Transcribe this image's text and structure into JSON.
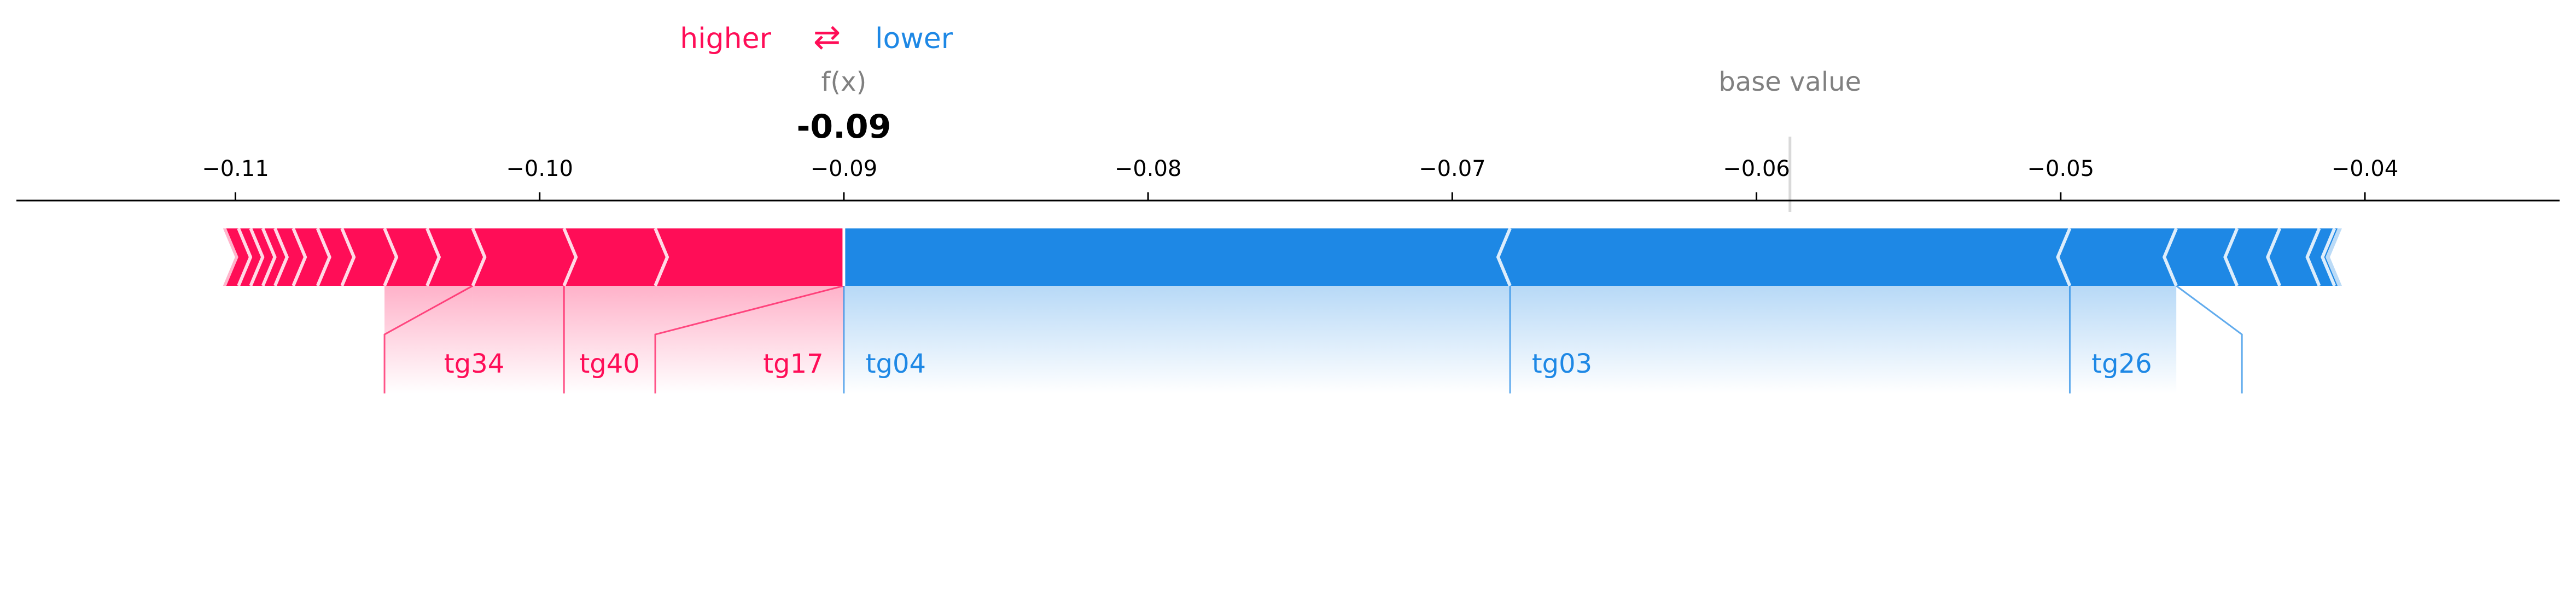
{
  "legend": {
    "higher_label": "higher",
    "lower_label": "lower",
    "arrow_glyph": "⇄"
  },
  "fx_label": "f(x)",
  "base_value_label": "base value",
  "colors": {
    "higher": "#ff0d57",
    "lower": "#1e88e5",
    "gray_text": "#808080",
    "divider": "#ffffff"
  },
  "chart_data": {
    "type": "force",
    "x_ticks": [
      -0.11,
      -0.1,
      -0.09,
      -0.08,
      -0.07,
      -0.06,
      -0.05,
      -0.04
    ],
    "x_tick_labels": [
      "−0.11",
      "−0.10",
      "−0.09",
      "−0.08",
      "−0.07",
      "−0.06",
      "−0.05",
      "−0.04"
    ],
    "xlim": [
      -0.1172,
      -0.0336
    ],
    "output_value": -0.09,
    "output_label": "-0.09",
    "base_value": -0.0589,
    "higher_range": [
      -0.1103,
      -0.09
    ],
    "lower_range": [
      -0.09,
      -0.0409
    ],
    "higher_boundaries": [
      -0.1103,
      -0.1099,
      -0.1095,
      -0.1091,
      -0.1087,
      -0.1081,
      -0.1073,
      -0.1065,
      -0.1051,
      -0.1037,
      -0.1022,
      -0.0992,
      -0.0962,
      -0.09
    ],
    "lower_boundaries": [
      -0.09,
      -0.0681,
      -0.0497,
      -0.0462,
      -0.0442,
      -0.0428,
      -0.0415,
      -0.041,
      -0.0409
    ],
    "higher_features": [
      {
        "name": "tg34",
        "start": -0.1051,
        "end": -0.1022,
        "label_x": -0.1051
      },
      {
        "name": "tg40",
        "start": -0.1022,
        "end": -0.0992,
        "label_x": -0.0992
      },
      {
        "name": "tg17",
        "start": -0.0992,
        "end": -0.09,
        "label_x": -0.0962
      }
    ],
    "lower_features": [
      {
        "name": "tg04",
        "start": -0.09,
        "end": -0.0681,
        "label_x": -0.09
      },
      {
        "name": "tg03",
        "start": -0.0681,
        "end": -0.0497,
        "label_x": -0.0681
      },
      {
        "name": "tg26",
        "start": -0.0497,
        "end": -0.0462,
        "label_x": -0.0497
      }
    ]
  }
}
